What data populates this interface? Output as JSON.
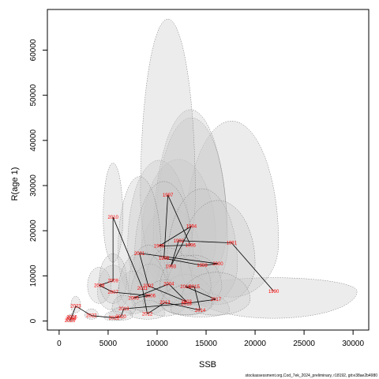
{
  "chart_data": {
    "type": "scatter",
    "title": "",
    "xlabel": "SSB",
    "ylabel": "R(age 1)",
    "xlim": [
      -1200,
      31600
    ],
    "ylim": [
      -2000,
      69000
    ],
    "xticks": [
      0,
      5000,
      10000,
      15000,
      20000,
      25000,
      30000
    ],
    "yticks": [
      0,
      10000,
      20000,
      30000,
      40000,
      50000,
      60000
    ],
    "footer": "stockassessment.org,Cod_7ek_2024_preliminary, r18192, git:e38ae2b4980",
    "label_color": "#ff0000",
    "line_color": "#000000",
    "ellipse_fill": "#c8c8c8",
    "ellipse_stroke": "#707070",
    "points": [
      {
        "year": "1990",
        "ssb": 21900,
        "rec": 6600,
        "rx": 8500,
        "ry_up": 3000,
        "ry_down": 6000
      },
      {
        "year": "1991",
        "ssb": 17600,
        "rec": 17300,
        "rx": 4800,
        "ry_up": 27000,
        "ry_down": 12000
      },
      {
        "year": "1992",
        "ssb": 12200,
        "rec": 17800,
        "rx": 3800,
        "ry_up": 18000,
        "ry_down": 11000
      },
      {
        "year": "1993",
        "ssb": 11400,
        "rec": 12100,
        "rx": 3200,
        "ry_up": 13000,
        "ry_down": 9000
      },
      {
        "year": "1994",
        "ssb": 13500,
        "rec": 21000,
        "rx": 3600,
        "ry_up": 24000,
        "ry_down": 14000
      },
      {
        "year": "1995",
        "ssb": 10200,
        "rec": 16600,
        "rx": 3200,
        "ry_up": 19000,
        "ry_down": 11000
      },
      {
        "year": "1996",
        "ssb": 13400,
        "rec": 16800,
        "rx": 3800,
        "ry_up": 30000,
        "ry_down": 12000
      },
      {
        "year": "1997",
        "ssb": 11100,
        "rec": 27900,
        "rx": 2800,
        "ry_up": 39000,
        "ry_down": 19000
      },
      {
        "year": "1998",
        "ssb": 10700,
        "rec": 13900,
        "rx": 3000,
        "ry_up": 17000,
        "ry_down": 9000
      },
      {
        "year": "1999",
        "ssb": 14600,
        "rec": 12300,
        "rx": 3600,
        "ry_up": 17000,
        "ry_down": 9000
      },
      {
        "year": "2000",
        "ssb": 16200,
        "rec": 12700,
        "rx": 3800,
        "ry_up": 14000,
        "ry_down": 9000
      },
      {
        "year": "2001",
        "ssb": 8200,
        "rec": 15000,
        "rx": 2200,
        "ry_up": 17000,
        "ry_down": 10000
      },
      {
        "year": "2002",
        "ssb": 9100,
        "rec": 7800,
        "rx": 2000,
        "ry_up": 9000,
        "ry_down": 5000
      },
      {
        "year": "2003",
        "ssb": 13000,
        "rec": 4300,
        "rx": 2800,
        "ry_up": 6000,
        "ry_down": 3000
      },
      {
        "year": "2004",
        "ssb": 11200,
        "rec": 8200,
        "rx": 2400,
        "ry_up": 8000,
        "ry_down": 5000
      },
      {
        "year": "2005",
        "ssb": 7600,
        "rec": 5100,
        "rx": 1700,
        "ry_up": 6000,
        "ry_down": 3500
      },
      {
        "year": "2006",
        "ssb": 9300,
        "rec": 5600,
        "rx": 2000,
        "ry_up": 7000,
        "ry_down": 4000
      },
      {
        "year": "2007",
        "ssb": 5500,
        "rec": 6400,
        "rx": 1600,
        "ry_up": 6000,
        "ry_down": 4000
      },
      {
        "year": "2008",
        "ssb": 4100,
        "rec": 7900,
        "rx": 1200,
        "ry_up": 4000,
        "ry_down": 4000
      },
      {
        "year": "2009",
        "ssb": 5500,
        "rec": 8900,
        "rx": 1400,
        "ry_up": 6000,
        "ry_down": 5000
      },
      {
        "year": "2010",
        "ssb": 5500,
        "rec": 23000,
        "rx": 1000,
        "ry_up": 12000,
        "ry_down": 10000
      },
      {
        "year": "2011",
        "ssb": 8500,
        "rec": 7300,
        "rx": 2400,
        "ry_up": 8000,
        "ry_down": 5000
      },
      {
        "year": "2012",
        "ssb": 9000,
        "rec": 1600,
        "rx": 1800,
        "ry_up": 3000,
        "ry_down": 1200
      },
      {
        "year": "2013",
        "ssb": 10800,
        "rec": 4100,
        "rx": 2200,
        "ry_up": 5000,
        "ry_down": 3000
      },
      {
        "year": "2014",
        "ssb": 14400,
        "rec": 2400,
        "rx": 3000,
        "ry_up": 4000,
        "ry_down": 1500
      },
      {
        "year": "2015",
        "ssb": 13800,
        "rec": 7600,
        "rx": 2800,
        "ry_up": 7000,
        "ry_down": 4000
      },
      {
        "year": "2016",
        "ssb": 12900,
        "rec": 7600,
        "rx": 2600,
        "ry_up": 7000,
        "ry_down": 4000
      },
      {
        "year": "2017",
        "ssb": 16000,
        "rec": 4800,
        "rx": 3500,
        "ry_up": 6000,
        "ry_down": 3500
      },
      {
        "year": "2018",
        "ssb": 13000,
        "rec": 3900,
        "rx": 2600,
        "ry_up": 4000,
        "ry_down": 2500
      },
      {
        "year": "2019",
        "ssb": 6600,
        "rec": 2700,
        "rx": 1200,
        "ry_up": 3000,
        "ry_down": 1500
      },
      {
        "year": "2020",
        "ssb": 6300,
        "rec": 1000,
        "rx": 1200,
        "ry_up": 2000,
        "ry_down": 800
      },
      {
        "year": "2021",
        "ssb": 5600,
        "rec": 700,
        "rx": 1000,
        "ry_up": 1500,
        "ry_down": 600
      },
      {
        "year": "2022",
        "ssb": 3300,
        "rec": 1200,
        "rx": 700,
        "ry_up": 1500,
        "ry_down": 800
      },
      {
        "year": "2023",
        "ssb": 1700,
        "rec": 3300,
        "rx": 500,
        "ry_up": 2200,
        "ry_down": 1500
      },
      {
        "year": "2024",
        "ssb": 1200,
        "rec": 500,
        "rx": 400,
        "ry_up": 800,
        "ry_down": 400
      },
      {
        "year": "2025",
        "ssb": 1100,
        "rec": 100,
        "rx": 400,
        "ry_up": 600,
        "ry_down": 300
      },
      {
        "year": "2026",
        "ssb": 1300,
        "rec": 900,
        "rx": 400,
        "ry_up": 700,
        "ry_down": 400
      }
    ]
  }
}
